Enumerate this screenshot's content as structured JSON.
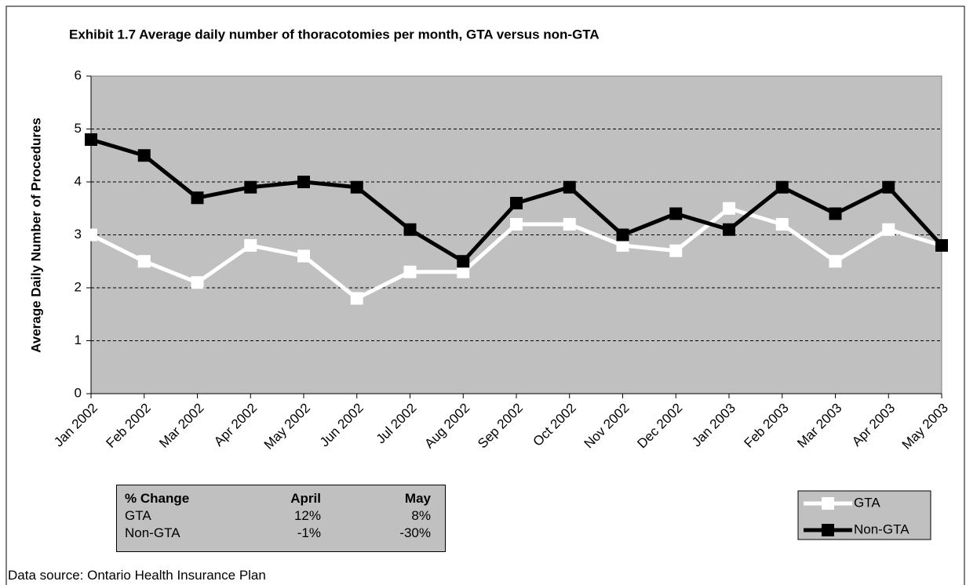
{
  "chart_data": {
    "type": "line",
    "title": "Exhibit 1.7 Average daily number of thoracotomies per month, GTA versus non-GTA",
    "y_label": "Average Daily Number of Procedures",
    "categories": [
      "Jan 2002",
      "Feb 2002",
      "Mar 2002",
      "Apr 2002",
      "May 2002",
      "Jun 2002",
      "Jul 2002",
      "Aug 2002",
      "Sep 2002",
      "Oct 2002",
      "Nov 2002",
      "Dec 2002",
      "Jan 2003",
      "Feb 2003",
      "Mar 2003",
      "Apr 2003",
      "May 2003"
    ],
    "series": [
      {
        "name": "GTA",
        "color": "#ffffff",
        "values": [
          3.0,
          2.5,
          2.1,
          2.8,
          2.6,
          1.8,
          2.3,
          2.3,
          3.2,
          3.2,
          2.8,
          2.7,
          3.5,
          3.2,
          2.5,
          3.1,
          2.8
        ]
      },
      {
        "name": "Non-GTA",
        "color": "#000000",
        "values": [
          4.8,
          4.5,
          3.7,
          3.9,
          4.0,
          3.9,
          3.1,
          2.5,
          3.6,
          3.9,
          3.0,
          3.4,
          3.1,
          3.9,
          3.4,
          3.9,
          2.8
        ]
      }
    ],
    "ylim": [
      0,
      6
    ],
    "yticks": [
      0,
      1,
      2,
      3,
      4,
      5,
      6
    ],
    "grid": true,
    "legend": "bottom-right",
    "background": "#c0c0c0"
  },
  "table": {
    "header": [
      "% Change",
      "April",
      "May"
    ],
    "rows": [
      [
        "GTA",
        "12%",
        "8%"
      ],
      [
        "Non-GTA",
        "-1%",
        "-30%"
      ]
    ]
  },
  "source": "Data source: Ontario Health Insurance Plan"
}
